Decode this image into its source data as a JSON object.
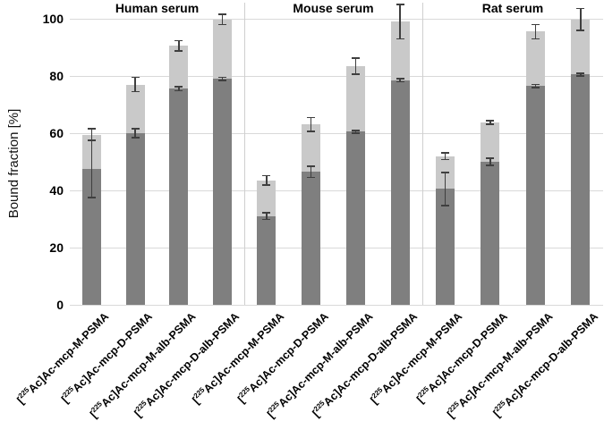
{
  "chart_data": {
    "type": "bar",
    "stacked": true,
    "title": "",
    "ylabel": "Bound fraction [%]",
    "xlabel": "",
    "ylim": [
      0,
      100
    ],
    "yticks": [
      0,
      20,
      40,
      60,
      80,
      100
    ],
    "grid": true,
    "legend": "none",
    "colors": {
      "dark_segment": "#7f7f7f",
      "light_segment": "#c9c9c9",
      "error_bar": "#3f3f3f",
      "gridline": "#d9d9d9",
      "panel_separator": "#cfcfcf"
    },
    "panels": [
      {
        "title": "Human serum",
        "bars": [
          {
            "label": "[225Ac]Ac-mcp-M-PSMA",
            "dark_value": 47.5,
            "dark_err": 10.0,
            "total_value": 59.5,
            "total_err": 2.0
          },
          {
            "label": "[225Ac]Ac-mcp-D-PSMA",
            "dark_value": 60.0,
            "dark_err": 1.5,
            "total_value": 77.0,
            "total_err": 2.5
          },
          {
            "label": "[225Ac]Ac-mcp-M-alb-PSMA",
            "dark_value": 75.5,
            "dark_err": 0.7,
            "total_value": 90.5,
            "total_err": 1.8
          },
          {
            "label": "[225Ac]Ac-mcp-D-alb-PSMA",
            "dark_value": 79.0,
            "dark_err": 0.5,
            "total_value": 99.7,
            "total_err": 1.8
          }
        ]
      },
      {
        "title": "Mouse serum",
        "bars": [
          {
            "label": "[225Ac]Ac-mcp-M-PSMA",
            "dark_value": 31.0,
            "dark_err": 1.2,
            "total_value": 43.5,
            "total_err": 1.6
          },
          {
            "label": "[225Ac]Ac-mcp-D-PSMA",
            "dark_value": 46.5,
            "dark_err": 2.0,
            "total_value": 63.0,
            "total_err": 2.4
          },
          {
            "label": "[225Ac]Ac-mcp-M-alb-PSMA",
            "dark_value": 60.5,
            "dark_err": 0.5,
            "total_value": 83.5,
            "total_err": 2.8
          },
          {
            "label": "[225Ac]Ac-mcp-D-alb-PSMA",
            "dark_value": 78.5,
            "dark_err": 0.5,
            "total_value": 99.0,
            "total_err": 6.0
          }
        ]
      },
      {
        "title": "Rat serum",
        "bars": [
          {
            "label": "[225Ac]Ac-mcp-M-PSMA",
            "dark_value": 40.5,
            "dark_err": 5.8,
            "total_value": 52.0,
            "total_err": 1.2
          },
          {
            "label": "[225Ac]Ac-mcp-D-PSMA",
            "dark_value": 50.0,
            "dark_err": 1.2,
            "total_value": 63.8,
            "total_err": 0.6
          },
          {
            "label": "[225Ac]Ac-mcp-M-alb-PSMA",
            "dark_value": 76.5,
            "dark_err": 0.5,
            "total_value": 95.5,
            "total_err": 2.5
          },
          {
            "label": "[225Ac]Ac-mcp-D-alb-PSMA",
            "dark_value": 80.5,
            "dark_err": 0.5,
            "total_value": 99.8,
            "total_err": 3.8
          }
        ]
      }
    ]
  }
}
